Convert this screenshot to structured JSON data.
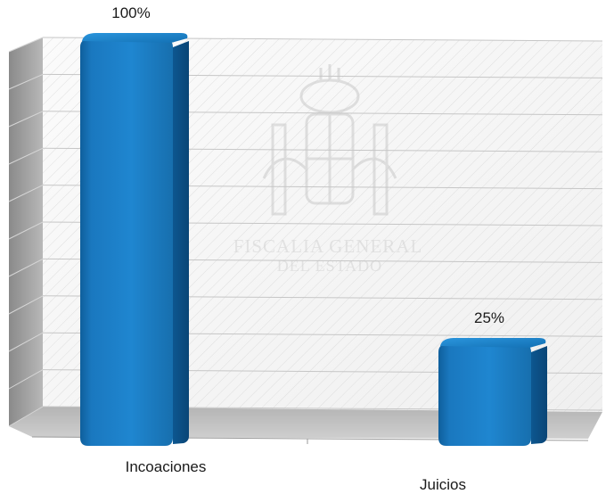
{
  "chart_data": {
    "type": "bar",
    "categories": [
      "Incoaciones",
      "Juicios"
    ],
    "values": [
      100,
      25
    ],
    "value_labels": [
      "100%",
      "25%"
    ],
    "ylim": [
      0,
      100
    ],
    "grid": true,
    "legend": "none",
    "style": "3d-cylinder-bars",
    "bar_color": "#1f7fc4"
  },
  "watermark": {
    "line1": "FISCALIA GENERAL",
    "line2": "DEL ESTADO"
  }
}
